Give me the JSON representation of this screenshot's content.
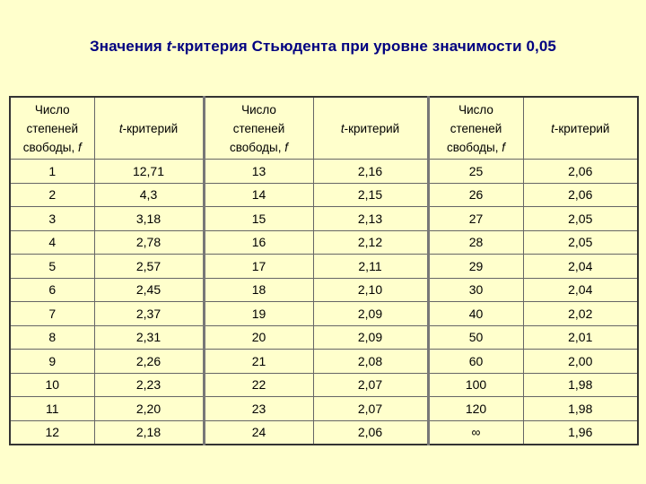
{
  "title": {
    "prefix": "Значения ",
    "t": "t",
    "suffix": "-критерия Стьюдента при уровне значимости 0,05"
  },
  "header": {
    "df_line1": "Число",
    "df_line2": "степеней",
    "df_line3_text": "свободы, ",
    "df_line3_var": "f",
    "t_var": "t",
    "t_text": "-критерий"
  },
  "rows": [
    [
      "1",
      "12,71",
      "13",
      "2,16",
      "25",
      "2,06"
    ],
    [
      "2",
      "4,3",
      "14",
      "2,15",
      "26",
      "2,06"
    ],
    [
      "3",
      "3,18",
      "15",
      "2,13",
      "27",
      "2,05"
    ],
    [
      "4",
      "2,78",
      "16",
      "2,12",
      "28",
      "2,05"
    ],
    [
      "5",
      "2,57",
      "17",
      "2,11",
      "29",
      "2,04"
    ],
    [
      "6",
      "2,45",
      "18",
      "2,10",
      "30",
      "2,04"
    ],
    [
      "7",
      "2,37",
      "19",
      "2,09",
      "40",
      "2,02"
    ],
    [
      "8",
      "2,31",
      "20",
      "2,09",
      "50",
      "2,01"
    ],
    [
      "9",
      "2,26",
      "21",
      "2,08",
      "60",
      "2,00"
    ],
    [
      "10",
      "2,23",
      "22",
      "2,07",
      "100",
      "1,98"
    ],
    [
      "11",
      "2,20",
      "23",
      "2,07",
      "120",
      "1,98"
    ],
    [
      "12",
      "2,18",
      "24",
      "2,06",
      "∞",
      "1,96"
    ]
  ],
  "colors": {
    "background": "#FFFFCC",
    "title": "#000080"
  }
}
